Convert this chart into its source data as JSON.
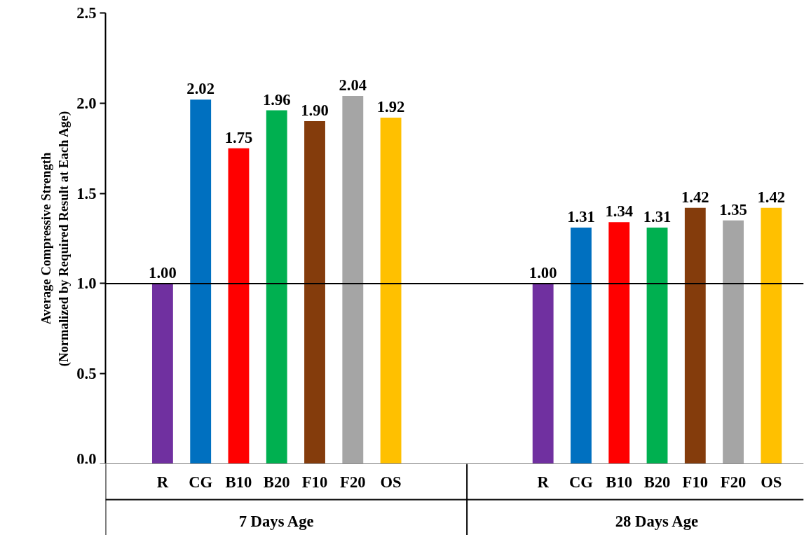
{
  "chart_data": {
    "type": "bar",
    "ylabel": "Average Compressive Strength\n(Normalized by Required Result at Each Age)",
    "categories": [
      "R",
      "CG",
      "B10",
      "B20",
      "F10",
      "F20",
      "OS",
      "R",
      "CG",
      "B10",
      "B20",
      "F10",
      "F20",
      "OS"
    ],
    "series": [
      {
        "values": [
          1.0,
          2.02,
          1.75,
          1.96,
          1.9,
          2.04,
          1.92,
          1.0,
          1.31,
          1.34,
          1.31,
          1.42,
          1.35,
          1.42
        ],
        "value_labels": [
          "1.00",
          "2.02",
          "1.75",
          "1.96",
          "1.90",
          "2.04",
          "1.92",
          "1.00",
          "1.31",
          "1.34",
          "1.31",
          "1.42",
          "1.35",
          "1.42"
        ],
        "colors": [
          "#7030a0",
          "#0070c0",
          "#ff0000",
          "#00b050",
          "#843c0c",
          "#a5a5a5",
          "#ffc000",
          "#7030a0",
          "#0070c0",
          "#ff0000",
          "#00b050",
          "#843c0c",
          "#a5a5a5",
          "#ffc000"
        ]
      }
    ],
    "annotations": [
      "7 Days Age",
      "28 Days Age"
    ],
    "ylim": [
      0,
      2.5
    ],
    "yticks": [
      {
        "value": 0,
        "label": "0.0"
      },
      {
        "value": 0.5,
        "label": "0.5"
      },
      {
        "value": 1,
        "label": "1.0"
      },
      {
        "value": 1.5,
        "label": "1.5"
      },
      {
        "value": 2,
        "label": "2.0"
      },
      {
        "value": 2.5,
        "label": "2.5"
      }
    ],
    "ref_lines": [
      {
        "axis": "y",
        "value": 1.0,
        "label": null,
        "color": "#000000"
      }
    ],
    "grid": false
  }
}
